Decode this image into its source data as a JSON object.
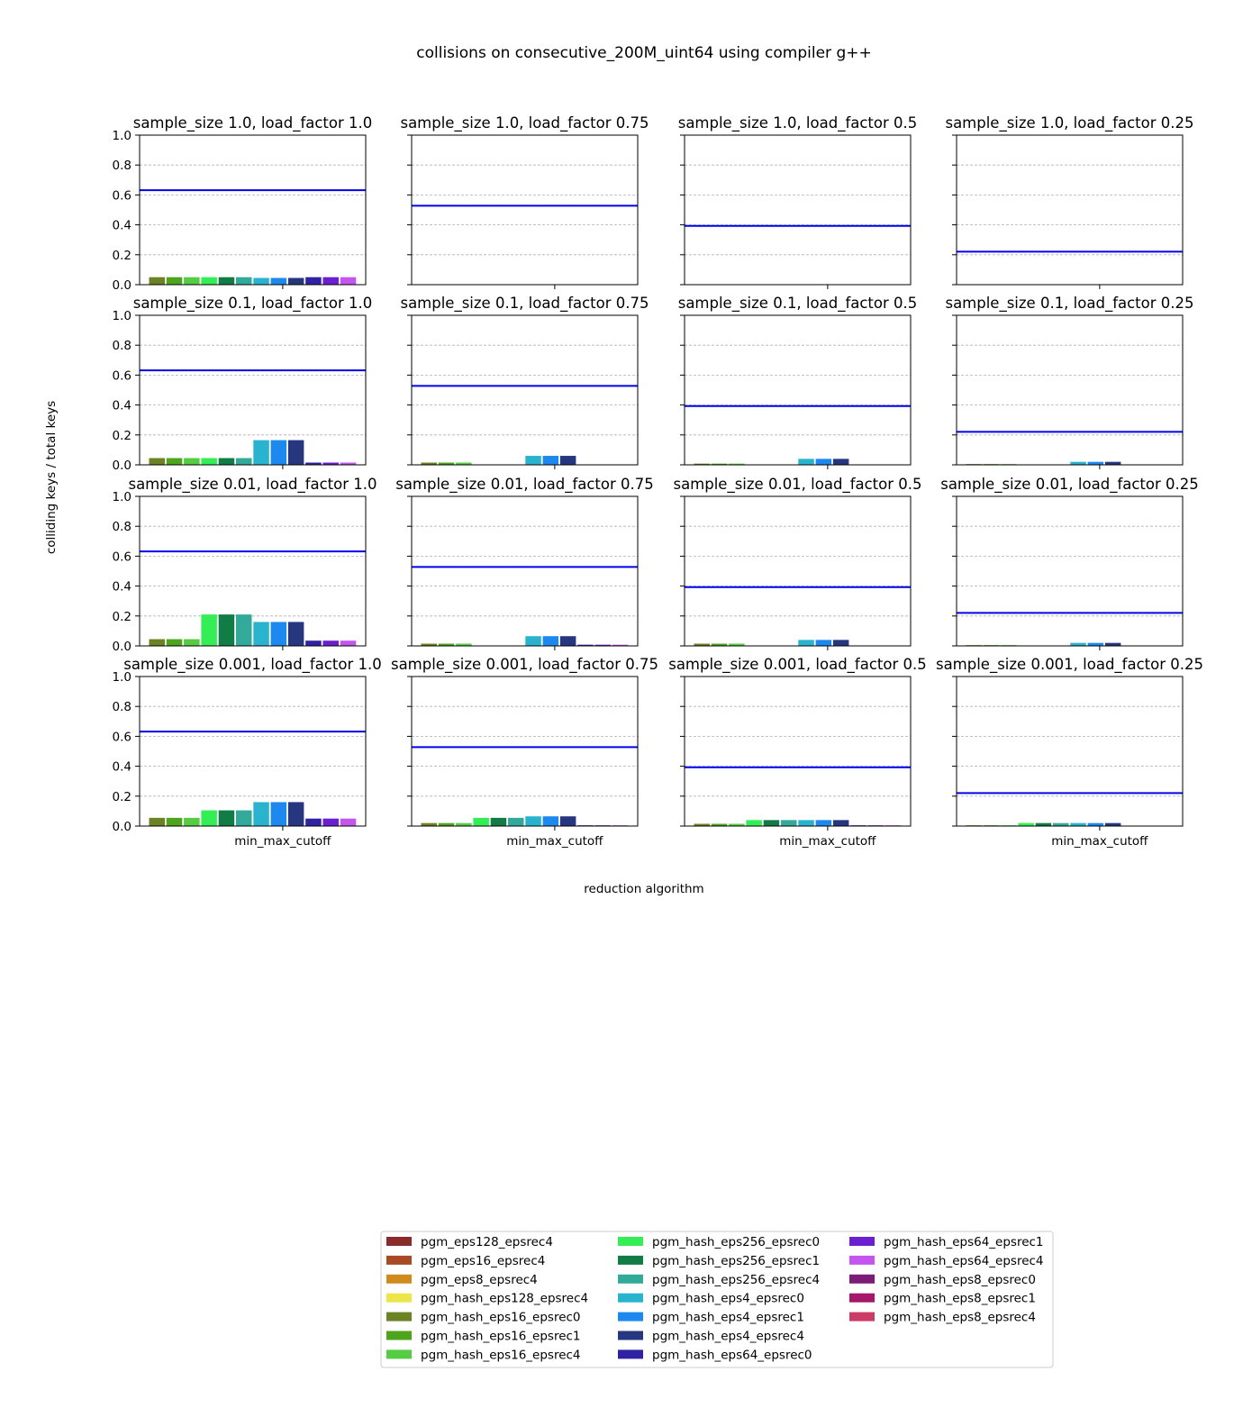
{
  "figure": {
    "title": "collisions on consecutive_200M_uint64 using compiler g++",
    "xlabel": "reduction algorithm",
    "ylabel": "colliding keys / total keys"
  },
  "legend": {
    "placement": "bottom-center",
    "columns": 3,
    "entries": [
      {
        "name": "pgm_eps128_epsrec4",
        "color": "#8b2a2a"
      },
      {
        "name": "pgm_eps16_epsrec4",
        "color": "#a84a23"
      },
      {
        "name": "pgm_eps8_epsrec4",
        "color": "#d18a1e"
      },
      {
        "name": "pgm_hash_eps128_epsrec4",
        "color": "#ece648"
      },
      {
        "name": "pgm_hash_eps16_epsrec0",
        "color": "#6b8225"
      },
      {
        "name": "pgm_hash_eps16_epsrec1",
        "color": "#4ea41c"
      },
      {
        "name": "pgm_hash_eps16_epsrec4",
        "color": "#55cc44"
      },
      {
        "name": "pgm_hash_eps256_epsrec0",
        "color": "#33ee55"
      },
      {
        "name": "pgm_hash_eps256_epsrec1",
        "color": "#127c47"
      },
      {
        "name": "pgm_hash_eps256_epsrec4",
        "color": "#33aa99"
      },
      {
        "name": "pgm_hash_eps4_epsrec0",
        "color": "#2ab3cf"
      },
      {
        "name": "pgm_hash_eps4_epsrec1",
        "color": "#1d88ee"
      },
      {
        "name": "pgm_hash_eps4_epsrec4",
        "color": "#26367f"
      },
      {
        "name": "pgm_hash_eps64_epsrec0",
        "color": "#2f23a3"
      },
      {
        "name": "pgm_hash_eps64_epsrec1",
        "color": "#6a1fd0"
      },
      {
        "name": "pgm_hash_eps64_epsrec4",
        "color": "#c455ee"
      },
      {
        "name": "pgm_hash_eps8_epsrec0",
        "color": "#7c1b78"
      },
      {
        "name": "pgm_hash_eps8_epsrec1",
        "color": "#a6176c"
      },
      {
        "name": "pgm_hash_eps8_epsrec4",
        "color": "#cc3b66"
      }
    ]
  },
  "chart_data": {
    "type": "bar",
    "grid": "rows 4 x cols 4",
    "ylim": [
      0,
      1.0
    ],
    "yticks": [
      "0.0",
      "0.2",
      "0.4",
      "0.6",
      "0.8",
      "1.0"
    ],
    "y_gridlines": true,
    "xtick_label": "min_max_cutoff",
    "reference_line_color": "#0000ee",
    "bar_series": [
      "pgm_hash_eps16_epsrec0",
      "pgm_hash_eps16_epsrec1",
      "pgm_hash_eps16_epsrec4",
      "pgm_hash_eps256_epsrec0",
      "pgm_hash_eps256_epsrec1",
      "pgm_hash_eps256_epsrec4",
      "pgm_hash_eps4_epsrec0",
      "pgm_hash_eps4_epsrec1",
      "pgm_hash_eps4_epsrec4",
      "pgm_hash_eps64_epsrec0",
      "pgm_hash_eps64_epsrec1",
      "pgm_hash_eps64_epsrec4"
    ],
    "panels": [
      {
        "title": "sample_size 1.0, load_factor 1.0",
        "reference": 0.632,
        "values": [
          0.05,
          0.05,
          0.05,
          0.05,
          0.05,
          0.05,
          0.045,
          0.045,
          0.045,
          0.05,
          0.05,
          0.05
        ]
      },
      {
        "title": "sample_size 1.0, load_factor 0.75",
        "reference": 0.528,
        "values": [
          0,
          0,
          0,
          0,
          0,
          0,
          0,
          0,
          0,
          0,
          0,
          0
        ]
      },
      {
        "title": "sample_size 1.0, load_factor 0.5",
        "reference": 0.393,
        "values": [
          0,
          0,
          0,
          0,
          0,
          0,
          0,
          0,
          0,
          0,
          0,
          0
        ]
      },
      {
        "title": "sample_size 1.0, load_factor 0.25",
        "reference": 0.221,
        "values": [
          0,
          0,
          0,
          0,
          0,
          0,
          0,
          0,
          0,
          0,
          0,
          0
        ]
      },
      {
        "title": "sample_size 0.1, load_factor 1.0",
        "reference": 0.632,
        "values": [
          0.045,
          0.045,
          0.045,
          0.045,
          0.045,
          0.045,
          0.165,
          0.165,
          0.165,
          0.015,
          0.015,
          0.015
        ]
      },
      {
        "title": "sample_size 0.1, load_factor 0.75",
        "reference": 0.528,
        "values": [
          0.015,
          0.015,
          0.015,
          0,
          0,
          0,
          0.06,
          0.06,
          0.06,
          0,
          0,
          0
        ]
      },
      {
        "title": "sample_size 0.1, load_factor 0.5",
        "reference": 0.393,
        "values": [
          0.008,
          0.008,
          0.008,
          0,
          0,
          0,
          0.04,
          0.04,
          0.04,
          0,
          0,
          0
        ]
      },
      {
        "title": "sample_size 0.1, load_factor 0.25",
        "reference": 0.221,
        "values": [
          0.005,
          0.005,
          0.005,
          0,
          0,
          0,
          0.02,
          0.02,
          0.02,
          0,
          0,
          0
        ]
      },
      {
        "title": "sample_size 0.01, load_factor 1.0",
        "reference": 0.632,
        "values": [
          0.045,
          0.045,
          0.045,
          0.21,
          0.21,
          0.21,
          0.16,
          0.16,
          0.16,
          0.035,
          0.035,
          0.035
        ]
      },
      {
        "title": "sample_size 0.01, load_factor 0.75",
        "reference": 0.528,
        "values": [
          0.015,
          0.015,
          0.015,
          0,
          0,
          0,
          0.065,
          0.065,
          0.065,
          0.008,
          0.008,
          0.008
        ]
      },
      {
        "title": "sample_size 0.01, load_factor 0.5",
        "reference": 0.393,
        "values": [
          0.015,
          0.015,
          0.015,
          0,
          0,
          0,
          0.04,
          0.04,
          0.04,
          0,
          0,
          0
        ]
      },
      {
        "title": "sample_size 0.01, load_factor 0.25",
        "reference": 0.221,
        "values": [
          0.005,
          0.005,
          0.005,
          0,
          0,
          0,
          0.02,
          0.02,
          0.02,
          0,
          0,
          0
        ]
      },
      {
        "title": "sample_size 0.001, load_factor 1.0",
        "reference": 0.632,
        "values": [
          0.055,
          0.055,
          0.055,
          0.105,
          0.105,
          0.105,
          0.16,
          0.16,
          0.16,
          0.05,
          0.05,
          0.05
        ]
      },
      {
        "title": "sample_size 0.001, load_factor 0.75",
        "reference": 0.528,
        "values": [
          0.02,
          0.02,
          0.02,
          0.055,
          0.055,
          0.055,
          0.065,
          0.065,
          0.065,
          0.005,
          0.005,
          0.005
        ]
      },
      {
        "title": "sample_size 0.001, load_factor 0.5",
        "reference": 0.393,
        "values": [
          0.015,
          0.015,
          0.015,
          0.04,
          0.04,
          0.04,
          0.04,
          0.04,
          0.04,
          0.005,
          0.005,
          0.005
        ]
      },
      {
        "title": "sample_size 0.001, load_factor 0.25",
        "reference": 0.221,
        "values": [
          0.005,
          0.005,
          0.005,
          0.02,
          0.02,
          0.02,
          0.02,
          0.02,
          0.02,
          0,
          0,
          0
        ]
      }
    ]
  }
}
